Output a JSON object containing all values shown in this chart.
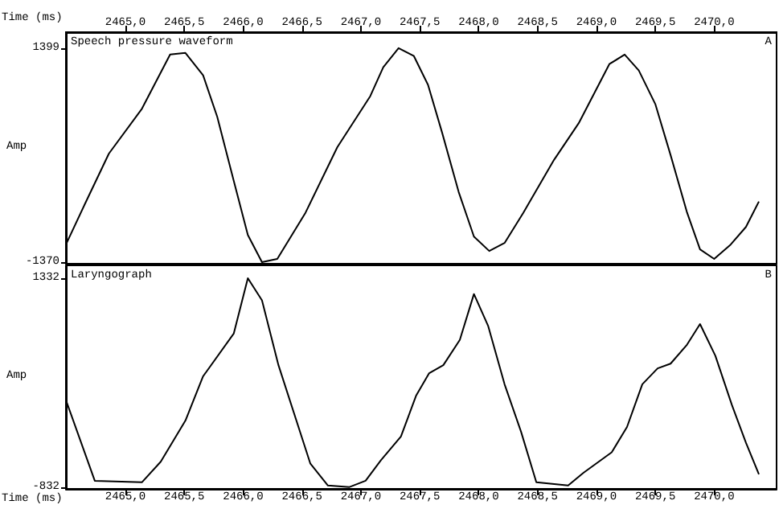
{
  "chart_data": [
    {
      "type": "line",
      "title": "Speech pressure waveform",
      "annotations": [
        "A"
      ],
      "ylabel": "Amp",
      "xlim": [
        2464.495,
        2470.53
      ],
      "tick_labels": "y",
      "x2label": "Time (ms)",
      "x2lim": [
        2464.495,
        2470.53
      ],
      "x2ticks": [
        {
          "value": 2465,
          "label": "2465,0"
        },
        {
          "value": 2465.5,
          "label": "2465,5"
        },
        {
          "value": 2466,
          "label": "2466,0"
        },
        {
          "value": 2466.5,
          "label": "2466,5"
        },
        {
          "value": 2467,
          "label": "2467,0"
        },
        {
          "value": 2467.5,
          "label": "2467,5"
        },
        {
          "value": 2468,
          "label": "2468,0"
        },
        {
          "value": 2468.5,
          "label": "2468,5"
        },
        {
          "value": 2469,
          "label": "2469,0"
        },
        {
          "value": 2469.5,
          "label": "2469,5"
        },
        {
          "value": 2470,
          "label": "2470,0"
        }
      ],
      "ylim": [
        -1390,
        1605
      ],
      "yticks": [
        -1370,
        1399
      ],
      "marker": "none",
      "line_style": "solid",
      "series": [
        {
          "color": "#000000",
          "x": [
            2464.495,
            2464.66,
            2464.86,
            2465.14,
            2465.38,
            2465.51,
            2465.66,
            2465.78,
            2465.92,
            2466.04,
            2466.16,
            2466.29,
            2466.53,
            2466.8,
            2467.08,
            2467.19,
            2467.32,
            2467.45,
            2467.57,
            2467.69,
            2467.83,
            2467.96,
            2468.09,
            2468.22,
            2468.38,
            2468.64,
            2468.85,
            2469.11,
            2469.24,
            2469.36,
            2469.5,
            2469.63,
            2469.77,
            2469.88,
            2470.0,
            2470.14,
            2470.27,
            2470.38
          ],
          "values": [
            -1142,
            -605,
            35,
            614,
            1316,
            1337,
            1048,
            511,
            -316,
            -1018,
            -1370,
            -1328,
            -729,
            118,
            779,
            1151,
            1399,
            1296,
            924,
            304,
            -460,
            -1039,
            -1225,
            -1122,
            -729,
            -47,
            428,
            1192,
            1316,
            1110,
            676,
            15,
            -729,
            -1204,
            -1328,
            -1142,
            -914,
            -585
          ]
        }
      ]
    },
    {
      "type": "line",
      "title": "Laryngograph",
      "annotations": [
        "B"
      ],
      "ylabel": "Amp",
      "xlabel": "Time (ms)",
      "xlim": [
        2464.495,
        2470.53
      ],
      "xticks": [
        {
          "value": 2465,
          "label": "2465,0"
        },
        {
          "value": 2465.5,
          "label": "2465,5"
        },
        {
          "value": 2466,
          "label": "2466,0"
        },
        {
          "value": 2466.5,
          "label": "2466,5"
        },
        {
          "value": 2467,
          "label": "2467,0"
        },
        {
          "value": 2467.5,
          "label": "2467,5"
        },
        {
          "value": 2468,
          "label": "2468,0"
        },
        {
          "value": 2468.5,
          "label": "2468,5"
        },
        {
          "value": 2469,
          "label": "2469,0"
        },
        {
          "value": 2469.5,
          "label": "2469,5"
        },
        {
          "value": 2470,
          "label": "2470,0"
        }
      ],
      "ylim": [
        -850,
        1465
      ],
      "yticks": [
        -832,
        1332
      ],
      "marker": "none",
      "line_style": "solid",
      "series": [
        {
          "color": "#000000",
          "x": [
            2464.495,
            2464.74,
            2465.14,
            2465.3,
            2465.51,
            2465.66,
            2465.92,
            2466.04,
            2466.16,
            2466.3,
            2466.57,
            2466.72,
            2466.9,
            2467.04,
            2467.17,
            2467.34,
            2467.47,
            2467.58,
            2467.7,
            2467.84,
            2467.96,
            2468.08,
            2468.22,
            2468.36,
            2468.49,
            2468.76,
            2468.89,
            2469.13,
            2469.26,
            2469.39,
            2469.52,
            2469.63,
            2469.77,
            2469.88,
            2470.01,
            2470.15,
            2470.27,
            2470.38
          ],
          "values": [
            70,
            -766,
            -782,
            -569,
            -143,
            316,
            758,
            1332,
            1103,
            431,
            -586,
            -815,
            -832,
            -766,
            -553,
            -307,
            119,
            349,
            431,
            693,
            1168,
            840,
            234,
            -258,
            -782,
            -815,
            -684,
            -471,
            -209,
            234,
            398,
            447,
            644,
            857,
            529,
            21,
            -373,
            -700
          ]
        }
      ]
    }
  ]
}
